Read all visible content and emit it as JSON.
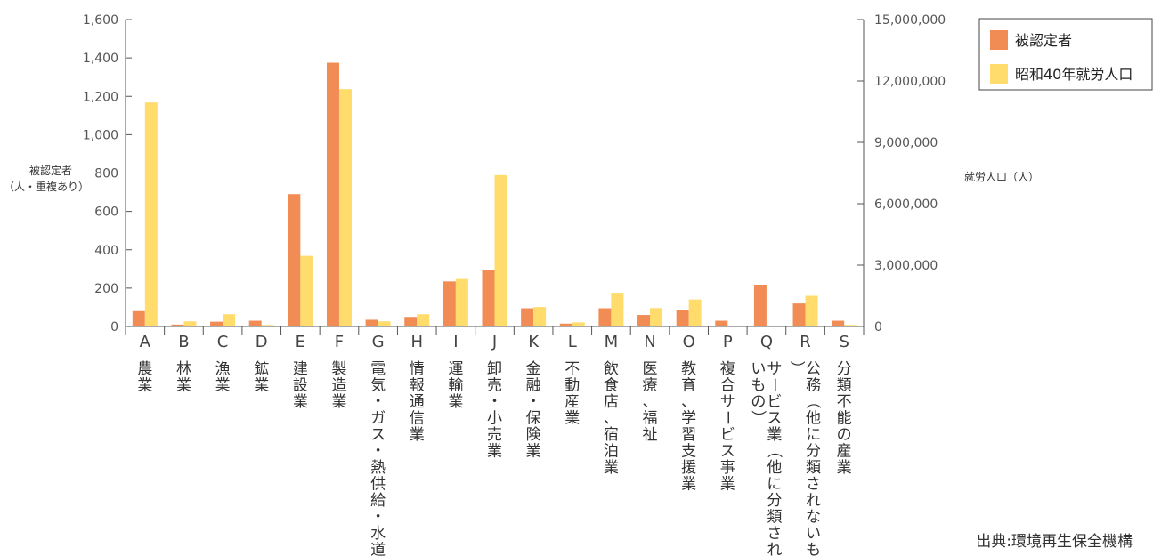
{
  "chart_data": {
    "type": "bar",
    "categories": [
      "A",
      "B",
      "C",
      "D",
      "E",
      "F",
      "G",
      "H",
      "I",
      "J",
      "K",
      "L",
      "M",
      "N",
      "O",
      "P",
      "Q",
      "R",
      "S"
    ],
    "category_names": [
      "農業",
      "林業",
      "漁業",
      "鉱業",
      "建設業",
      "製造業",
      "電気・ガス・熱供給・水道業",
      "情報通信業",
      "運輸業",
      "卸売・小売業",
      "金融・保険業",
      "不動産業",
      "飲食店、宿泊業",
      "医療、福祉",
      "教育、学習支援業",
      "複合サービス事業",
      "サービス業（他に分類されないもの）",
      "公務（他に分類されないもの）",
      "分類不能の産業"
    ],
    "series": [
      {
        "name": "被認定者",
        "axis": "left",
        "color": "#f28c55",
        "values": [
          80,
          10,
          25,
          30,
          690,
          1375,
          35,
          50,
          235,
          295,
          95,
          15,
          95,
          60,
          85,
          30,
          218,
          120,
          30
        ]
      },
      {
        "name": "昭和40年就労人口",
        "axis": "right",
        "color": "#ffdc6b",
        "values": [
          10950000,
          250000,
          600000,
          75000,
          3450000,
          11600000,
          250000,
          600000,
          2320000,
          7400000,
          950000,
          200000,
          1650000,
          900000,
          1320000,
          0,
          0,
          1500000,
          75000
        ]
      }
    ],
    "ylabel_left": [
      "被認定者",
      "（人・重複あり）"
    ],
    "ylabel_right": "就労人口（人）",
    "ylim_left": [
      0,
      1600
    ],
    "yticks_left": [
      0,
      200,
      400,
      600,
      800,
      1000,
      1200,
      1400,
      1600
    ],
    "ylim_right": [
      0,
      15000000
    ],
    "yticks_right": [
      0,
      3000000,
      6000000,
      9000000,
      12000000,
      15000000
    ],
    "legend_position": "top-right",
    "grid": false
  },
  "source_note": "出典:環境再生保全機構"
}
